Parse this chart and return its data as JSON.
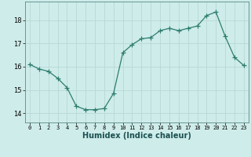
{
  "x": [
    0,
    1,
    2,
    3,
    4,
    5,
    6,
    7,
    8,
    9,
    10,
    11,
    12,
    13,
    14,
    15,
    16,
    17,
    18,
    19,
    20,
    21,
    22,
    23
  ],
  "y": [
    16.1,
    15.9,
    15.8,
    15.5,
    15.1,
    14.3,
    14.15,
    14.15,
    14.2,
    14.85,
    16.6,
    16.95,
    17.2,
    17.25,
    17.55,
    17.65,
    17.55,
    17.65,
    17.75,
    18.2,
    18.35,
    17.3,
    16.4,
    16.05
  ],
  "line_color": "#2e7d6e",
  "marker": "+",
  "marker_size": 4.0,
  "background_color": "#ceecea",
  "grid_color": "#b8d8d5",
  "axis_color": "#5a8a85",
  "xlabel": "Humidex (Indice chaleur)",
  "ylim": [
    13.6,
    18.8
  ],
  "xlim": [
    -0.5,
    23.5
  ],
  "yticks": [
    14,
    15,
    16,
    17,
    18
  ],
  "xticks": [
    0,
    1,
    2,
    3,
    4,
    5,
    6,
    7,
    8,
    9,
    10,
    11,
    12,
    13,
    14,
    15,
    16,
    17,
    18,
    19,
    20,
    21,
    22,
    23
  ],
  "xlabel_fontsize": 7.0,
  "xlabel_color": "#1a5050",
  "ytick_fontsize": 6.0,
  "xtick_fontsize": 5.0
}
